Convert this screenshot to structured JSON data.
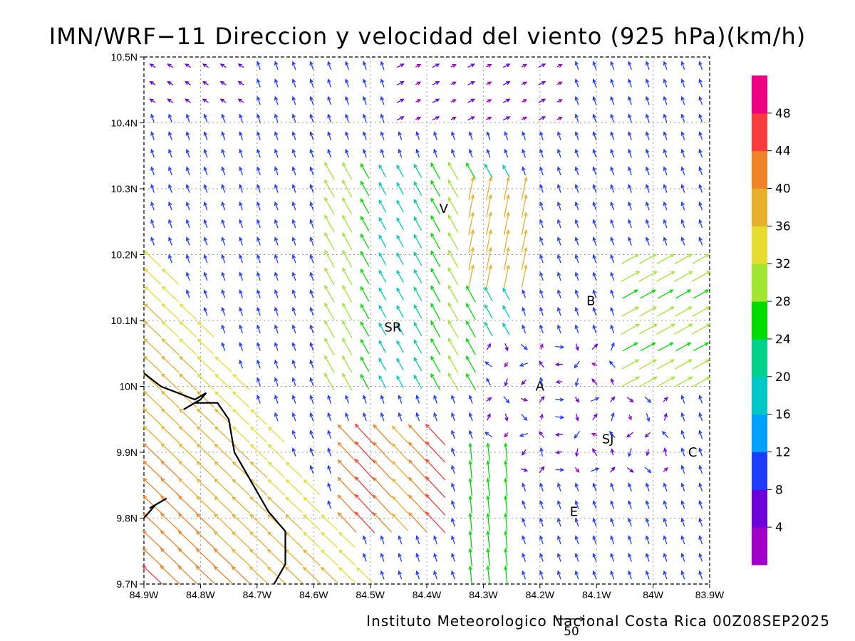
{
  "title": "IMN/WRF−11 Direccion y velocidad del viento (925 hPa)(km/h)",
  "footer": "Instituto Meteorologico Nacional Costa Rica 00Z08SEP2025",
  "reference_vector": {
    "value": "50"
  },
  "chart_data": {
    "type": "map",
    "x_ticks": [
      "84.9W",
      "84.8W",
      "84.7W",
      "84.6W",
      "84.5W",
      "84.4W",
      "84.3W",
      "84.2W",
      "84.1W",
      "84W",
      "83.9W"
    ],
    "y_ticks": [
      "10.5N",
      "10.4N",
      "10.3N",
      "10.2N",
      "10.1N",
      "10N",
      "9.9N",
      "9.8N",
      "9.7N"
    ],
    "x_range": [
      -84.9,
      -83.9
    ],
    "y_range": [
      9.7,
      10.5
    ],
    "grid": true,
    "legend": "right",
    "labels": [
      {
        "text": "V",
        "lon": -84.37,
        "lat": 10.27
      },
      {
        "text": "B",
        "lon": -84.11,
        "lat": 10.13
      },
      {
        "text": "SR",
        "lon": -84.46,
        "lat": 10.09
      },
      {
        "text": "A",
        "lon": -84.2,
        "lat": 10.0
      },
      {
        "text": "SJ",
        "lon": -84.08,
        "lat": 9.92
      },
      {
        "text": "C",
        "lon": -83.93,
        "lat": 9.9
      },
      {
        "text": "E",
        "lon": -84.14,
        "lat": 9.81
      }
    ],
    "colorbar": {
      "ticks": [
        "4",
        "8",
        "12",
        "16",
        "20",
        "24",
        "28",
        "32",
        "36",
        "40",
        "44",
        "48"
      ],
      "colors": [
        "#a000c8",
        "#6e00dc",
        "#1e3cff",
        "#00a0ff",
        "#00c8c8",
        "#00d28c",
        "#00dc00",
        "#a0e632",
        "#e6dc32",
        "#e6af2d",
        "#f08228",
        "#fa3c3c",
        "#f00082"
      ]
    },
    "coastline": [
      [
        -84.9,
        10.02
      ],
      [
        -84.87,
        10.0
      ],
      [
        -84.84,
        9.99
      ],
      [
        -84.81,
        9.98
      ],
      [
        -84.79,
        9.99
      ],
      [
        -84.8,
        9.98
      ],
      [
        -84.83,
        9.965
      ],
      [
        -84.81,
        9.975
      ],
      [
        -84.77,
        9.975
      ],
      [
        -84.75,
        9.95
      ],
      [
        -84.74,
        9.9
      ],
      [
        -84.72,
        9.87
      ],
      [
        -84.7,
        9.84
      ],
      [
        -84.68,
        9.81
      ],
      [
        -84.65,
        9.78
      ],
      [
        -84.65,
        9.73
      ],
      [
        -84.67,
        9.7
      ]
    ],
    "coastline2": [
      [
        -84.9,
        9.8
      ],
      [
        -84.88,
        9.82
      ],
      [
        -84.86,
        9.83
      ],
      [
        -84.89,
        9.815
      ]
    ]
  }
}
